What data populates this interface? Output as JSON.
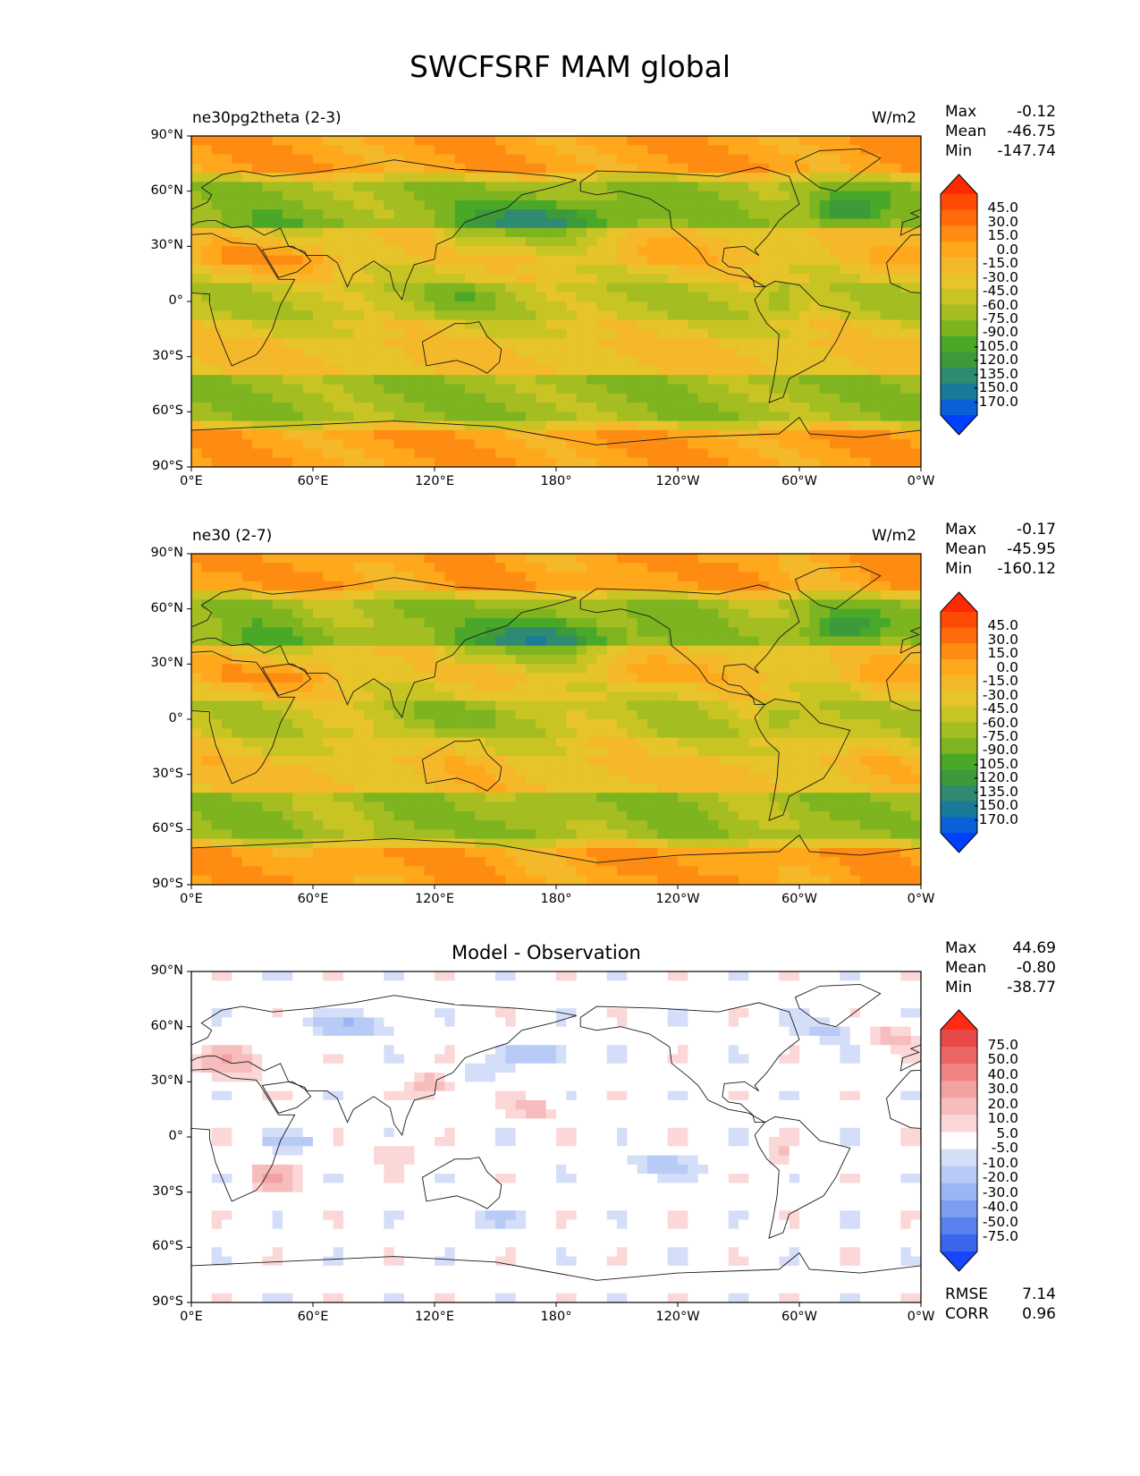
{
  "figure_title": "SWCFSRF MAM global",
  "colors": {
    "test": [
      "#0040ff",
      "#0a60d8",
      "#1a7a9a",
      "#2e8a70",
      "#3c9a3a",
      "#4aa828",
      "#7db41f",
      "#a4bd20",
      "#c8c424",
      "#e6c42a",
      "#f4b82a",
      "#ffa81c",
      "#ff8c12",
      "#ff6a0a",
      "#ff4a06",
      "#ff2a02"
    ],
    "diff": [
      "#1846ff",
      "#3a66ee",
      "#5a82ee",
      "#7c9ef2",
      "#9bb6f4",
      "#b7cbf6",
      "#d5def8",
      "#ffffff",
      "#fbd7d7",
      "#f7bcbc",
      "#f3a2a2",
      "#f08484",
      "#ec6666",
      "#e84848",
      "#ff2a14"
    ]
  },
  "x_ticks": [
    "0°E",
    "60°E",
    "120°E",
    "180°",
    "120°W",
    "60°W",
    "0°W"
  ],
  "y_ticks": [
    "90°N",
    "60°N",
    "30°N",
    "0°",
    "30°S",
    "60°S",
    "90°S"
  ],
  "chart_data": [
    {
      "type": "heatmap",
      "left_title": "ne30pg2theta (2-3)",
      "units": "W/m2",
      "stats": {
        "max_label": "Max",
        "max": "-0.12",
        "mean_label": "Mean",
        "mean": "-46.75",
        "min_label": "Min",
        "min": "-147.74"
      },
      "levels": [
        "45.0",
        "30.0",
        "15.0",
        "0.0",
        "-15.0",
        "-30.0",
        "-45.0",
        "-60.0",
        "-75.0",
        "-90.0",
        "-105.0",
        "-120.0",
        "-135.0",
        "-150.0",
        "-170.0"
      ],
      "palette": "test",
      "xlim": [
        0,
        360
      ],
      "ylim": [
        -90,
        90
      ]
    },
    {
      "type": "heatmap",
      "left_title": "ne30 (2-7)",
      "units": "W/m2",
      "stats": {
        "max_label": "Max",
        "max": "-0.17",
        "mean_label": "Mean",
        "mean": "-45.95",
        "min_label": "Min",
        "min": "-160.12"
      },
      "levels": [
        "45.0",
        "30.0",
        "15.0",
        "0.0",
        "-15.0",
        "-30.0",
        "-45.0",
        "-60.0",
        "-75.0",
        "-90.0",
        "-105.0",
        "-120.0",
        "-135.0",
        "-150.0",
        "-170.0"
      ],
      "palette": "test",
      "xlim": [
        0,
        360
      ],
      "ylim": [
        -90,
        90
      ]
    },
    {
      "type": "heatmap",
      "center_title": "Model - Observation",
      "stats": {
        "max_label": "Max",
        "max": "44.69",
        "mean_label": "Mean",
        "mean": "-0.80",
        "min_label": "Min",
        "min": "-38.77"
      },
      "levels": [
        "75.0",
        "50.0",
        "40.0",
        "30.0",
        "20.0",
        "10.0",
        "5.0",
        "-5.0",
        "-10.0",
        "-20.0",
        "-30.0",
        "-40.0",
        "-50.0",
        "-75.0"
      ],
      "palette": "diff",
      "extra": {
        "rmse_label": "RMSE",
        "rmse": "7.14",
        "corr_label": "CORR",
        "corr": "0.96"
      },
      "xlim": [
        0,
        360
      ],
      "ylim": [
        -90,
        90
      ]
    }
  ]
}
